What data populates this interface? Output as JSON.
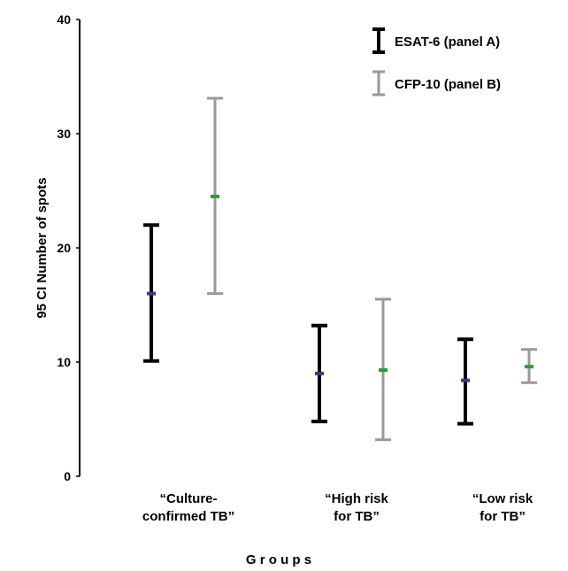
{
  "chart_data": {
    "type": "errorbar",
    "title": "",
    "xlabel": "G r o u p s",
    "ylabel": "95   CI Number of spots",
    "ylim": [
      0,
      40
    ],
    "yticks": [
      0,
      10,
      20,
      30,
      40
    ],
    "grid": false,
    "legend_position": "top-right",
    "categories": [
      [
        "“Culture-",
        "confirmed TB”"
      ],
      [
        "“High risk",
        "for TB”"
      ],
      [
        "“Low risk",
        "for TB”"
      ]
    ],
    "series": [
      {
        "name": "ESAT-6 (panel A)",
        "color": "#000000",
        "mean_marker_color": "#3a3a8c",
        "mean": [
          16.0,
          9.0,
          8.4
        ],
        "lower": [
          10.1,
          4.8,
          4.6
        ],
        "upper": [
          22.0,
          13.2,
          12.0
        ]
      },
      {
        "name": "CFP-10 (panel B)",
        "color": "#999999",
        "mean_marker_color": "#2e9a3a",
        "mean": [
          24.5,
          9.3,
          9.6
        ],
        "lower": [
          16.0,
          3.2,
          8.2
        ],
        "upper": [
          33.1,
          15.5,
          11.1
        ]
      }
    ]
  }
}
